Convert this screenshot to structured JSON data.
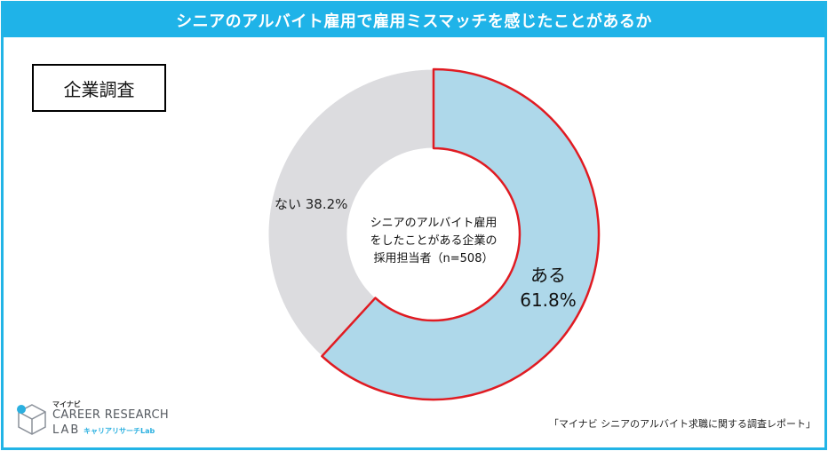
{
  "header": {
    "title": "シニアのアルバイト雇用で雇用ミスマッチを感じたことがあるか"
  },
  "label_box": "企業調査",
  "chart_data": {
    "type": "pie",
    "variant": "donut",
    "title": "シニアのアルバイト雇用で雇用ミスマッチを感じたことがあるか",
    "center_label": [
      "シニアのアルバイト雇用",
      "をしたことがある企業の",
      "採用担当者（n=508）"
    ],
    "slices": [
      {
        "label": "ある",
        "value": 61.8,
        "display": "61.8%",
        "color": "#aed8ea",
        "highlight": "#e01b22"
      },
      {
        "label": "ない",
        "value": 38.2,
        "display": "ない 38.2%",
        "color": "#dcdcdf"
      }
    ]
  },
  "source": "「マイナビ シニアのアルバイト求職に関する調査レポート」",
  "logo": {
    "brand_small": "マイナビ",
    "name_line1": "CAREER RESEARCH",
    "name_line2": "LAB",
    "name_kana": "キャリアリサーチLab"
  }
}
